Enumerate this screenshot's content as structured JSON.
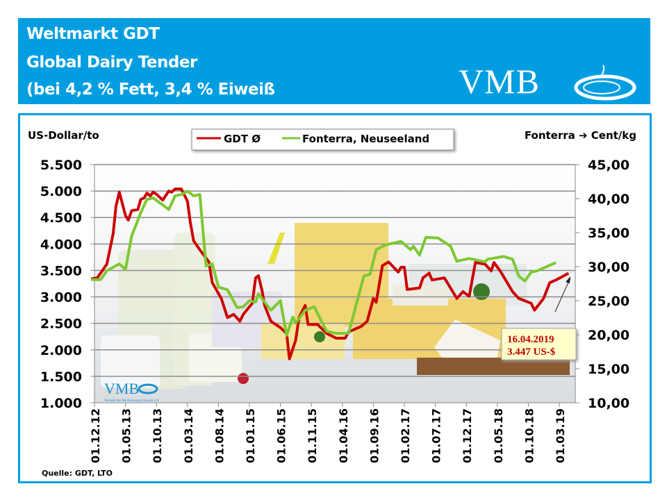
{
  "header": {
    "title_line1": "Weltmarkt GDT",
    "title_line2": "Global Dairy Tender",
    "title_line3": "(bei 4,2 % Fett, 3,4 % Eiweiß",
    "logo_text": "VMB",
    "background_color": "#009ee0"
  },
  "watermark": {
    "logo_text": "VMB",
    "subtitle": "Verband der Milcherzeuger Bayern e.V."
  },
  "source": "Quelle:  GDT,  LTO",
  "chart_data": {
    "type": "line",
    "ylabel_left": "US-Dollar/to",
    "ylabel_right": "Fonterra ➔ Cent/kg",
    "ylim_left": [
      1000,
      5500
    ],
    "ylim_right": [
      10,
      45
    ],
    "yticks_left": [
      "5.500",
      "5.000",
      "4.500",
      "4.000",
      "3.500",
      "3.000",
      "2.500",
      "2.000",
      "1.500",
      "1.000"
    ],
    "yticks_right": [
      "45,00",
      "40,00",
      "35,00",
      "30,00",
      "25,00",
      "20,00",
      "15,00",
      "10,00"
    ],
    "xticks": [
      "01.12.12",
      "01.05.13",
      "01.10.13",
      "01.03.14",
      "01.08.14",
      "01.01.15",
      "01.06.15",
      "01.11.15",
      "01.04.16",
      "01.09.16",
      "01.02.17",
      "01.07.17",
      "01.12.17",
      "01.05.18",
      "01.10.18",
      "01.03.19"
    ],
    "grid": true,
    "legend_position": "top",
    "annotation": {
      "date": "16.04.2019",
      "value": "3.447 US-$"
    },
    "series": [
      {
        "name": "GDT Ø",
        "axis": "left",
        "color": "#cc0000",
        "points": [
          [
            "2012-11-15",
            3340
          ],
          [
            "2012-12-15",
            3360
          ],
          [
            "2013-02-01",
            3620
          ],
          [
            "2013-03-01",
            4190
          ],
          [
            "2013-03-15",
            4710
          ],
          [
            "2013-04-01",
            4980
          ],
          [
            "2013-05-01",
            4540
          ],
          [
            "2013-05-15",
            4450
          ],
          [
            "2013-06-01",
            4630
          ],
          [
            "2013-07-01",
            4650
          ],
          [
            "2013-07-15",
            4840
          ],
          [
            "2013-08-01",
            4870
          ],
          [
            "2013-08-15",
            4960
          ],
          [
            "2013-09-01",
            4910
          ],
          [
            "2013-09-15",
            4980
          ],
          [
            "2013-10-01",
            4940
          ],
          [
            "2013-11-01",
            4830
          ],
          [
            "2013-12-01",
            5000
          ],
          [
            "2013-12-15",
            4980
          ],
          [
            "2014-01-01",
            5040
          ],
          [
            "2014-02-01",
            5040
          ],
          [
            "2014-03-01",
            4810
          ],
          [
            "2014-03-15",
            4410
          ],
          [
            "2014-04-01",
            4060
          ],
          [
            "2014-05-01",
            3890
          ],
          [
            "2014-06-15",
            3660
          ],
          [
            "2014-07-01",
            3270
          ],
          [
            "2014-08-15",
            2970
          ],
          [
            "2014-09-15",
            2610
          ],
          [
            "2014-10-15",
            2670
          ],
          [
            "2014-11-15",
            2540
          ],
          [
            "2014-12-01",
            2670
          ],
          [
            "2015-01-15",
            2880
          ],
          [
            "2015-02-01",
            3360
          ],
          [
            "2015-02-15",
            3400
          ],
          [
            "2015-03-01",
            3140
          ],
          [
            "2015-03-15",
            2840
          ],
          [
            "2015-04-15",
            2540
          ],
          [
            "2015-06-01",
            2420
          ],
          [
            "2015-07-01",
            2310
          ],
          [
            "2015-07-15",
            1830
          ],
          [
            "2015-08-15",
            2180
          ],
          [
            "2015-09-01",
            2610
          ],
          [
            "2015-10-01",
            2840
          ],
          [
            "2015-10-15",
            2480
          ],
          [
            "2015-12-01",
            2480
          ],
          [
            "2016-01-15",
            2310
          ],
          [
            "2016-03-01",
            2220
          ],
          [
            "2016-04-15",
            2220
          ],
          [
            "2016-05-01",
            2340
          ],
          [
            "2016-07-01",
            2440
          ],
          [
            "2016-08-01",
            2540
          ],
          [
            "2016-09-01",
            2970
          ],
          [
            "2016-09-15",
            2900
          ],
          [
            "2016-10-15",
            3590
          ],
          [
            "2016-11-15",
            3660
          ],
          [
            "2017-01-01",
            3470
          ],
          [
            "2017-01-15",
            3560
          ],
          [
            "2017-02-01",
            3560
          ],
          [
            "2017-02-15",
            3140
          ],
          [
            "2017-04-15",
            3170
          ],
          [
            "2017-05-01",
            3360
          ],
          [
            "2017-06-01",
            3450
          ],
          [
            "2017-06-15",
            3320
          ],
          [
            "2017-08-15",
            3360
          ],
          [
            "2017-10-15",
            2970
          ],
          [
            "2017-11-15",
            3100
          ],
          [
            "2017-12-15",
            3010
          ],
          [
            "2018-01-15",
            3650
          ],
          [
            "2018-03-01",
            3620
          ],
          [
            "2018-04-01",
            3490
          ],
          [
            "2018-04-15",
            3650
          ],
          [
            "2018-05-15",
            3490
          ],
          [
            "2018-07-15",
            3100
          ],
          [
            "2018-08-15",
            2970
          ],
          [
            "2018-10-15",
            2880
          ],
          [
            "2018-11-01",
            2750
          ],
          [
            "2018-12-15",
            2970
          ],
          [
            "2019-01-15",
            3270
          ],
          [
            "2019-02-15",
            3320
          ],
          [
            "2019-04-16",
            3447
          ]
        ]
      },
      {
        "name": "Fonterra, Neuseeland",
        "axis": "right",
        "color": "#7dc832",
        "points": [
          [
            "2012-11-15",
            28.1
          ],
          [
            "2013-01-01",
            28.1
          ],
          [
            "2013-02-01",
            29.4
          ],
          [
            "2013-04-01",
            30.4
          ],
          [
            "2013-05-01",
            29.6
          ],
          [
            "2013-06-01",
            34.5
          ],
          [
            "2013-07-15",
            37.9
          ],
          [
            "2013-08-15",
            39.9
          ],
          [
            "2013-09-15",
            40.1
          ],
          [
            "2013-12-01",
            38.4
          ],
          [
            "2014-01-01",
            40.4
          ],
          [
            "2014-02-01",
            40.6
          ],
          [
            "2014-03-01",
            41.1
          ],
          [
            "2014-04-01",
            40.4
          ],
          [
            "2014-05-01",
            40.6
          ],
          [
            "2014-06-01",
            30.1
          ],
          [
            "2014-07-01",
            30.4
          ],
          [
            "2014-08-01",
            27.0
          ],
          [
            "2014-09-15",
            26.6
          ],
          [
            "2014-11-01",
            24.0
          ],
          [
            "2014-12-01",
            24.1
          ],
          [
            "2015-01-01",
            25.0
          ],
          [
            "2015-02-01",
            24.8
          ],
          [
            "2015-02-15",
            26.0
          ],
          [
            "2015-04-15",
            23.6
          ],
          [
            "2015-06-01",
            25.0
          ],
          [
            "2015-07-01",
            19.9
          ],
          [
            "2015-08-01",
            22.6
          ],
          [
            "2015-08-15",
            21.7
          ],
          [
            "2015-10-01",
            23.6
          ],
          [
            "2015-11-15",
            24.1
          ],
          [
            "2016-01-15",
            20.5
          ],
          [
            "2016-03-01",
            20.2
          ],
          [
            "2016-05-01",
            20.2
          ],
          [
            "2016-07-15",
            28.6
          ],
          [
            "2016-08-15",
            28.9
          ],
          [
            "2016-09-15",
            32.5
          ],
          [
            "2016-11-01",
            33.2
          ],
          [
            "2017-01-15",
            33.7
          ],
          [
            "2017-03-01",
            32.5
          ],
          [
            "2017-03-15",
            33.0
          ],
          [
            "2017-04-15",
            31.7
          ],
          [
            "2017-05-15",
            34.3
          ],
          [
            "2017-07-15",
            34.2
          ],
          [
            "2017-09-15",
            33.0
          ],
          [
            "2017-10-15",
            30.8
          ],
          [
            "2017-12-15",
            31.2
          ],
          [
            "2018-03-01",
            30.7
          ],
          [
            "2018-03-15",
            31.1
          ],
          [
            "2018-06-01",
            31.5
          ],
          [
            "2018-07-15",
            31.1
          ],
          [
            "2018-08-15",
            28.6
          ],
          [
            "2018-09-15",
            27.9
          ],
          [
            "2018-10-15",
            29.2
          ],
          [
            "2018-11-15",
            29.4
          ],
          [
            "2019-01-15",
            30.2
          ],
          [
            "2019-02-15",
            30.6
          ]
        ]
      }
    ]
  }
}
